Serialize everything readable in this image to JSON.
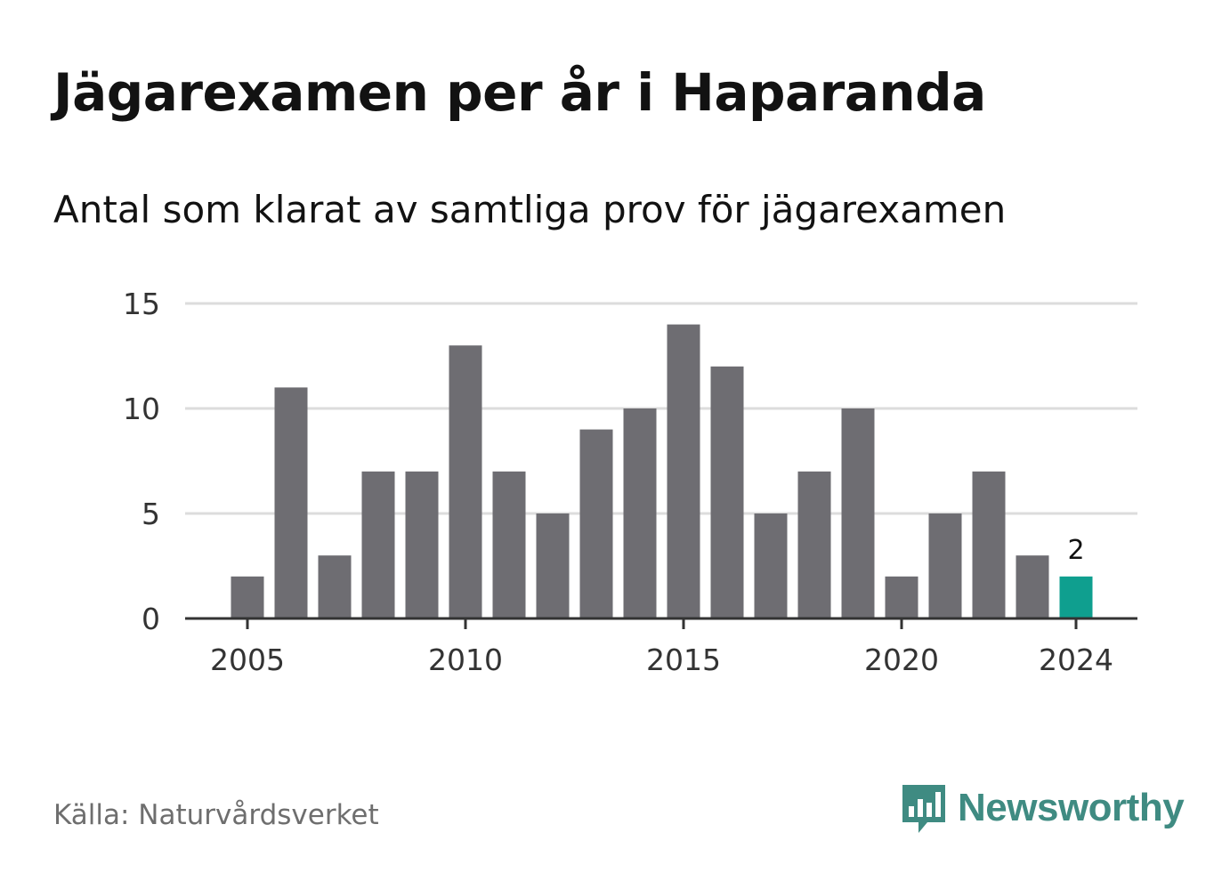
{
  "header": {
    "title": "Jägarexamen per år i Haparanda",
    "subtitle": "Antal som klarat av samtliga prov för jägarexamen"
  },
  "footer": {
    "source": "Källa: Naturvårdsverket",
    "brand": "Newsworthy"
  },
  "colors": {
    "bar": "#6e6d72",
    "highlight": "#0f9f8f",
    "grid": "#dcdcdc",
    "axis": "#333333",
    "brand": "#3f8b82"
  },
  "icons": {
    "logo": "bar-chart-speech-bubble-icon"
  },
  "chart_data": {
    "type": "bar",
    "x": [
      2005,
      2006,
      2007,
      2008,
      2009,
      2010,
      2011,
      2012,
      2013,
      2014,
      2015,
      2016,
      2017,
      2018,
      2019,
      2020,
      2021,
      2022,
      2023,
      2024
    ],
    "values": [
      2,
      11,
      3,
      7,
      7,
      13,
      7,
      5,
      9,
      10,
      14,
      12,
      5,
      7,
      10,
      2,
      5,
      7,
      3,
      2
    ],
    "highlight": 2024,
    "annotations": [
      {
        "x": 2024,
        "text": "2"
      }
    ],
    "ylim": [
      0,
      15
    ],
    "yticks": [
      0,
      5,
      10,
      15
    ],
    "xticks": [
      2005,
      2010,
      2015,
      2020,
      2024
    ],
    "grid": true,
    "legend": "none"
  }
}
